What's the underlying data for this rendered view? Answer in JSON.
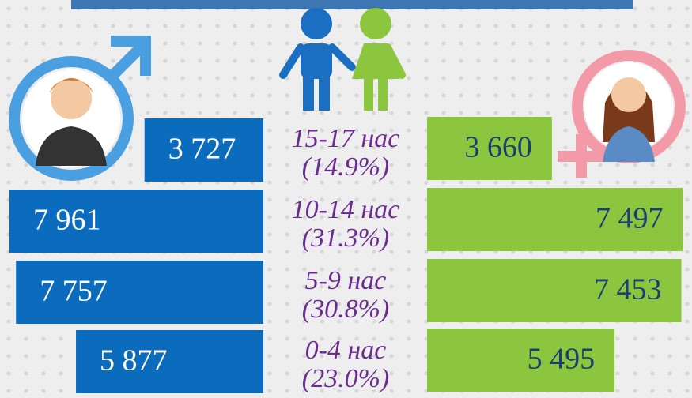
{
  "chart_data": {
    "type": "pyramid",
    "categories": [
      "15-17 нас",
      "10-14 нас",
      "5-9 нас",
      "0-4 нас"
    ],
    "shares": [
      14.9,
      31.3,
      30.8,
      23.0
    ],
    "share_labels": [
      "(14.9%)",
      "(31.3%)",
      "(30.8%)",
      "(23.0%)"
    ],
    "series": [
      {
        "color": "#0b6cbe",
        "values": [
          3727,
          7961,
          7757,
          5877
        ],
        "value_labels": [
          "3 727",
          "7 961",
          "7 757",
          "5 877"
        ]
      },
      {
        "color": "#8cc63f",
        "values": [
          3660,
          7497,
          7453,
          5495
        ],
        "value_labels": [
          "3 660",
          "7 497",
          "7 453",
          "5 495"
        ]
      }
    ]
  }
}
